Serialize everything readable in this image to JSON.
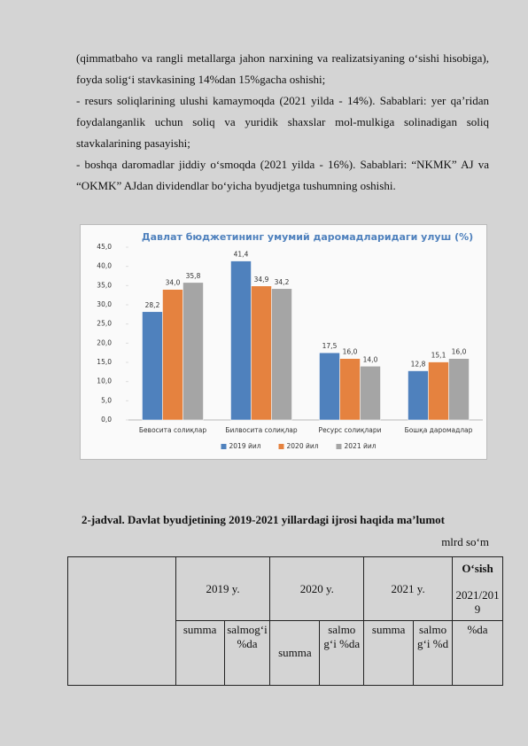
{
  "paragraphs": [
    "(qimmatbaho va rangli metallarga jahon narxining va realizatsiyaning o‘sishi hisobiga), foyda solig‘i stavkasining 14%dan 15%gacha oshishi;",
    "- resurs soliqlarining ulushi kamaymoqda (2021 yilda - 14%). Sabablari: yer qa’ridan foydalanganlik uchun soliq va yuridik shaxslar mol-mulkiga solinadigan soliq stavkalarining pasayishi;",
    "- boshqa daromadlar jiddiy o‘smoqda (2021 yilda - 16%). Sabablari: “NKMK” AJ va “OKMK” AJdan dividendlar bo‘yicha byudjetga tushumning oshishi."
  ],
  "chart_data": {
    "type": "bar",
    "title": "Давлат бюджетининг умумий даромадларидаги улуш (%)",
    "categories": [
      "Бевосита солиқлар",
      "Билвосита солиқлар",
      "Ресурс солиқлари",
      "Бошқа даромадлар"
    ],
    "series": [
      {
        "name": "2019 йил",
        "color": "#4f81bd",
        "values": [
          28.2,
          41.4,
          17.5,
          12.8
        ],
        "value_labels": [
          "28,2",
          "41,4",
          "17,5",
          "12,8"
        ]
      },
      {
        "name": "2020 йил",
        "color": "#e5823f",
        "values": [
          34.0,
          34.9,
          16.0,
          15.1
        ],
        "value_labels": [
          "34,0",
          "34,9",
          "16,0",
          "15,1"
        ]
      },
      {
        "name": "2021 йил",
        "color": "#a5a5a5",
        "values": [
          35.8,
          34.2,
          14.0,
          16.0
        ],
        "value_labels": [
          "35,8",
          "34,2",
          "14,0",
          "16,0"
        ]
      }
    ],
    "ylim": [
      0,
      45
    ],
    "yticks": [
      {
        "value": 0,
        "label": "0,0"
      },
      {
        "value": 5,
        "label": "5,0"
      },
      {
        "value": 10,
        "label": "10,0"
      },
      {
        "value": 15,
        "label": "15,0"
      },
      {
        "value": 20,
        "label": "20,0"
      },
      {
        "value": 25,
        "label": "25,0"
      },
      {
        "value": 30,
        "label": "30,0"
      },
      {
        "value": 35,
        "label": "35,0"
      },
      {
        "value": 40,
        "label": "40,0"
      },
      {
        "value": 45,
        "label": "45,0"
      }
    ],
    "legend": "bottom"
  },
  "table": {
    "caption": "2-jadval. Davlat byudjetining 2019-2021 yillardagi ijrosi haqida ma’lumot",
    "unit": "mlrd so‘m",
    "header": [
      "2019 y.",
      "2020 y.",
      "2021 y.",
      "O‘sish",
      "2021/2019"
    ],
    "subheader": [
      "summa",
      "salmog‘i %da",
      "summa",
      "salmog‘i %da",
      "summa",
      "salmog‘i %d",
      "%da"
    ]
  }
}
